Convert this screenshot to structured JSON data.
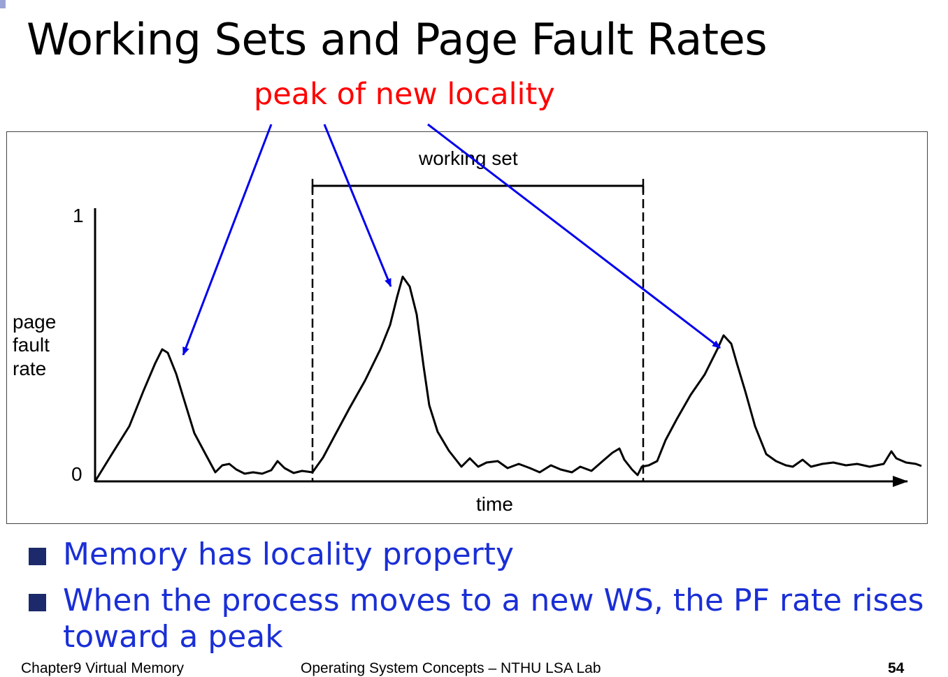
{
  "title": "Working Sets and Page Fault Rates",
  "annotation": "peak of new locality",
  "diagram": {
    "y_tick_top": "1",
    "y_tick_bottom": "0",
    "y_label_lines": [
      "page",
      "fault",
      "rate"
    ],
    "x_label": "time",
    "working_set_label": "working set"
  },
  "bullets": [
    "Memory has locality property",
    "When the process moves to a new WS, the PF rate rises toward a peak"
  ],
  "footer": {
    "chapter": "Chapter9 Virtual Memory",
    "course": "Operating System Concepts – NTHU LSA Lab",
    "page": "54"
  },
  "colors": {
    "annotation": "#ff0000",
    "arrows": "#0000ee",
    "bullets": "#1a2fd6",
    "bullet_marker": "#1c2a6b"
  }
}
